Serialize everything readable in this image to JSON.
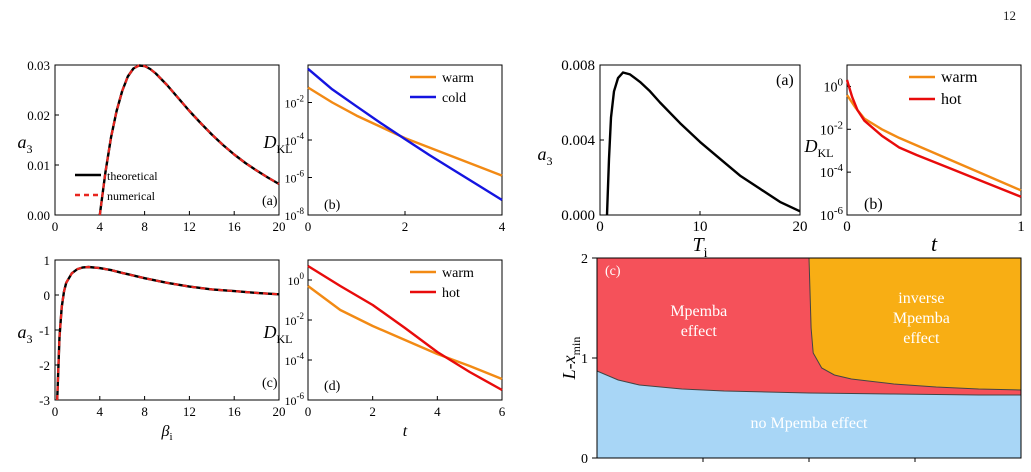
{
  "page_number": "12",
  "colors": {
    "black": "#000000",
    "red_dashed": "#e8251f",
    "orange": "#f28a14",
    "blue": "#1414e0",
    "red": "#e80b0b",
    "region_mpemba": "#f5515a",
    "region_inverse": "#f8ae14",
    "region_none": "#a8d6f6"
  },
  "chart_data": [
    {
      "id": "left-a",
      "type": "line",
      "panel_label": "(a)",
      "ylabel_main": "a",
      "ylabel_sub": "3",
      "xlabel": "",
      "xlim": [
        0,
        20
      ],
      "ylim": [
        0,
        0.03
      ],
      "xticks": [
        "0",
        "4",
        "8",
        "12",
        "16",
        "20"
      ],
      "yticks": [
        "0.00",
        "0.01",
        "0.02",
        "0.03"
      ],
      "legend": [
        "theoretical",
        "numerical"
      ],
      "series": [
        {
          "name": "theoretical",
          "style": "solid",
          "color": "#000000",
          "x": [
            4,
            4.5,
            5,
            5.5,
            6,
            6.5,
            7,
            7.5,
            8,
            8.5,
            9,
            10,
            11,
            12,
            13,
            14,
            15,
            16,
            17,
            18,
            19,
            20
          ],
          "y": [
            0,
            0.0085,
            0.0155,
            0.0208,
            0.0248,
            0.0277,
            0.0293,
            0.0299,
            0.0298,
            0.0292,
            0.0283,
            0.026,
            0.0234,
            0.0208,
            0.0184,
            0.0161,
            0.014,
            0.0121,
            0.0104,
            0.0089,
            0.0075,
            0.0062
          ]
        },
        {
          "name": "numerical",
          "style": "dashed",
          "color": "#e8251f",
          "x": [
            4,
            4.5,
            5,
            5.5,
            6,
            6.5,
            7,
            7.5,
            8,
            8.5,
            9,
            10,
            11,
            12,
            13,
            14,
            15,
            16,
            17,
            18,
            19,
            20
          ],
          "y": [
            0,
            0.0085,
            0.0155,
            0.0208,
            0.0248,
            0.0277,
            0.0293,
            0.0299,
            0.0298,
            0.0292,
            0.0283,
            0.026,
            0.0234,
            0.0208,
            0.0184,
            0.0161,
            0.014,
            0.0121,
            0.0104,
            0.0089,
            0.0075,
            0.0062
          ]
        }
      ]
    },
    {
      "id": "left-b",
      "type": "line",
      "panel_label": "(b)",
      "ylabel_main": "D",
      "ylabel_sub": "KL",
      "xlabel": "",
      "yscale": "log",
      "xlim": [
        0,
        4
      ],
      "ylim_exp": [
        -8,
        0
      ],
      "xticks": [
        "0",
        "2",
        "4"
      ],
      "yticks_exp": [
        "-8",
        "-6",
        "-4",
        "-2"
      ],
      "legend": [
        "warm",
        "cold"
      ],
      "series": [
        {
          "name": "warm",
          "color": "#f28a14",
          "x": [
            0,
            0.5,
            1,
            1.5,
            2,
            2.5,
            3,
            3.5,
            4
          ],
          "y_exp": [
            -1.2,
            -2.0,
            -2.7,
            -3.3,
            -3.9,
            -4.4,
            -4.9,
            -5.4,
            -5.9
          ]
        },
        {
          "name": "cold",
          "color": "#1414e0",
          "x": [
            0,
            0.5,
            1,
            1.5,
            2,
            2.5,
            3,
            3.5,
            4
          ],
          "y_exp": [
            -0.2,
            -1.3,
            -2.2,
            -3.1,
            -3.95,
            -4.8,
            -5.6,
            -6.4,
            -7.2
          ]
        }
      ]
    },
    {
      "id": "left-c",
      "type": "line",
      "panel_label": "(c)",
      "ylabel_main": "a",
      "ylabel_sub": "3",
      "xlabel_main": "β",
      "xlabel_sub": "i",
      "xlim": [
        0,
        20
      ],
      "ylim": [
        -3,
        1
      ],
      "xticks": [
        "0",
        "4",
        "8",
        "12",
        "16",
        "20"
      ],
      "yticks": [
        "-3",
        "-2",
        "-1",
        "0",
        "1"
      ],
      "series": [
        {
          "name": "theoretical",
          "style": "solid",
          "color": "#000000",
          "x": [
            0.2,
            0.4,
            0.6,
            0.8,
            1,
            1.5,
            2,
            2.5,
            3,
            4,
            5,
            6,
            8,
            10,
            12,
            14,
            16,
            18,
            20
          ],
          "y": [
            -3.0,
            -1.2,
            -0.35,
            0.1,
            0.35,
            0.62,
            0.74,
            0.79,
            0.8,
            0.77,
            0.71,
            0.63,
            0.48,
            0.35,
            0.24,
            0.16,
            0.11,
            0.06,
            0.02
          ]
        },
        {
          "name": "numerical",
          "style": "dashed",
          "color": "#e8251f",
          "x": [
            0.2,
            0.4,
            0.6,
            0.8,
            1,
            1.5,
            2,
            2.5,
            3,
            4,
            5,
            6,
            8,
            10,
            12,
            14,
            16,
            18,
            20
          ],
          "y": [
            -3.0,
            -1.2,
            -0.35,
            0.1,
            0.35,
            0.62,
            0.74,
            0.79,
            0.8,
            0.77,
            0.71,
            0.63,
            0.48,
            0.35,
            0.24,
            0.16,
            0.11,
            0.06,
            0.02
          ]
        }
      ]
    },
    {
      "id": "left-d",
      "type": "line",
      "panel_label": "(d)",
      "ylabel_main": "D",
      "ylabel_sub": "KL",
      "xlabel": "t",
      "yscale": "log",
      "xlim": [
        0,
        6
      ],
      "ylim_exp": [
        -6,
        1
      ],
      "xticks": [
        "0",
        "2",
        "4",
        "6"
      ],
      "yticks_exp": [
        "-6",
        "-4",
        "-2",
        "0"
      ],
      "legend": [
        "warm",
        "hot"
      ],
      "series": [
        {
          "name": "warm",
          "color": "#f28a14",
          "x": [
            0,
            1,
            2,
            3,
            4,
            5,
            6
          ],
          "y_exp": [
            -0.3,
            -1.5,
            -2.3,
            -3.0,
            -3.7,
            -4.3,
            -4.95
          ]
        },
        {
          "name": "hot",
          "color": "#e80b0b",
          "x": [
            0,
            1,
            2,
            3,
            4,
            5,
            6
          ],
          "y_exp": [
            0.7,
            -0.3,
            -1.25,
            -2.4,
            -3.6,
            -4.6,
            -5.5
          ]
        }
      ]
    },
    {
      "id": "right-a",
      "type": "line",
      "panel_label": "(a)",
      "ylabel_main": "a",
      "ylabel_sub": "3",
      "xlabel_main": "T",
      "xlabel_sub": "i",
      "xlim": [
        0,
        20
      ],
      "ylim": [
        0,
        0.008
      ],
      "xticks": [
        "0",
        "10",
        "20"
      ],
      "yticks": [
        "0.000",
        "0.004",
        "0.008"
      ],
      "series": [
        {
          "name": "",
          "color": "#000000",
          "x": [
            0.7,
            0.9,
            1.1,
            1.4,
            1.8,
            2.3,
            3,
            4,
            5,
            6,
            8,
            10,
            12,
            14,
            16,
            18,
            20
          ],
          "y": [
            0,
            0.003,
            0.0052,
            0.0066,
            0.0073,
            0.0076,
            0.0075,
            0.0071,
            0.0066,
            0.006,
            0.0049,
            0.0039,
            0.003,
            0.0021,
            0.0014,
            0.0007,
            0.0002
          ]
        }
      ]
    },
    {
      "id": "right-b",
      "type": "line",
      "panel_label": "(b)",
      "ylabel_main": "D",
      "ylabel_sub": "KL",
      "xlabel": "t",
      "yscale": "log",
      "xlim": [
        0,
        1
      ],
      "ylim_exp": [
        -6,
        1
      ],
      "xticks": [
        "0",
        "1"
      ],
      "yticks_exp": [
        "-6",
        "-4",
        "-2",
        "0"
      ],
      "legend": [
        "warm",
        "hot"
      ],
      "series": [
        {
          "name": "warm",
          "color": "#f28a14",
          "x": [
            0,
            0.05,
            0.1,
            0.2,
            0.3,
            0.4,
            0.6,
            0.8,
            1.0
          ],
          "y_exp": [
            -0.4,
            -1.0,
            -1.5,
            -2.0,
            -2.4,
            -2.75,
            -3.45,
            -4.15,
            -4.85
          ]
        },
        {
          "name": "hot",
          "color": "#e80b0b",
          "x": [
            0,
            0.03,
            0.06,
            0.1,
            0.2,
            0.3,
            0.4,
            0.6,
            0.8,
            1.0
          ],
          "y_exp": [
            0.3,
            -0.5,
            -1.1,
            -1.6,
            -2.3,
            -2.85,
            -3.2,
            -3.85,
            -4.5,
            -5.15
          ]
        }
      ]
    },
    {
      "id": "right-c",
      "type": "area",
      "panel_label": "(c)",
      "ylabel": "L-x",
      "ylabel_sub": "min",
      "ylim": [
        0,
        2
      ],
      "xlim": [
        0,
        1
      ],
      "yticks": [
        "0",
        "1",
        "2"
      ],
      "regions": [
        {
          "name": "Mpemba effect",
          "lines": [
            "Mpemba",
            "effect"
          ],
          "color": "#f5515a"
        },
        {
          "name": "inverse Mpemba effect",
          "lines": [
            "inverse",
            "Mpemba",
            "effect"
          ],
          "color": "#f8ae14"
        },
        {
          "name": "no Mpemba effect",
          "lines": [
            "no Mpemba effect"
          ],
          "color": "#a8d6f6"
        }
      ],
      "lower_boundary": {
        "x": [
          0,
          0.05,
          0.1,
          0.2,
          0.3,
          0.4,
          0.5,
          0.6,
          0.7,
          0.8,
          0.9,
          1.0
        ],
        "y": [
          0.87,
          0.78,
          0.73,
          0.69,
          0.67,
          0.66,
          0.65,
          0.645,
          0.64,
          0.635,
          0.63,
          0.63
        ]
      },
      "vertical_boundary": {
        "x": [
          0.5,
          0.505,
          0.51,
          0.53,
          0.56,
          0.6,
          0.7,
          0.8,
          0.9,
          1.0
        ],
        "y": [
          2.0,
          1.3,
          1.05,
          0.9,
          0.83,
          0.79,
          0.74,
          0.71,
          0.69,
          0.68
        ]
      }
    }
  ]
}
